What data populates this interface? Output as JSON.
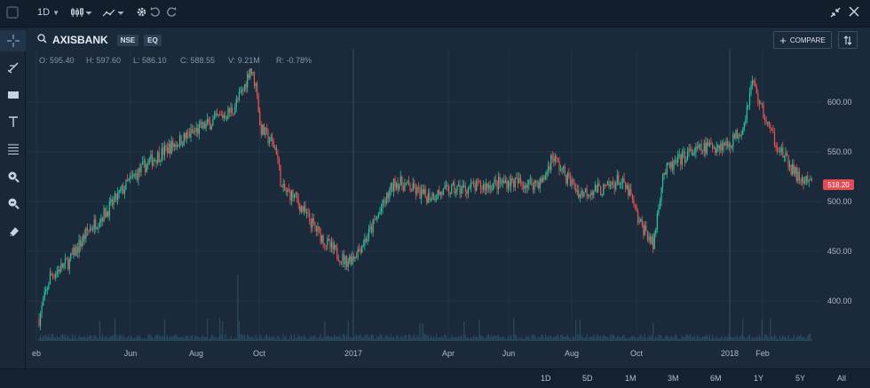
{
  "toolbar": {
    "interval": "1D",
    "icons": [
      "candlestick-icon",
      "indicators-icon",
      "settings-icon",
      "undo-icon",
      "redo-icon",
      "fullscreen-icon",
      "close-icon"
    ]
  },
  "sidebar": {
    "tools": [
      "crosshair-icon",
      "draw-line-icon",
      "rectangle-icon",
      "text-icon",
      "fib-lines-icon",
      "zoom-in-icon",
      "zoom-out-icon",
      "eraser-icon"
    ]
  },
  "header": {
    "symbol": "AXISBANK",
    "exchange": "NSE",
    "segment": "EQ",
    "compare_label": "COMPARE"
  },
  "ohlc": {
    "o_label": "O:",
    "o": "595.40",
    "h_label": "H:",
    "h": "597.60",
    "l_label": "L:",
    "l": "586.10",
    "c_label": "C:",
    "c": "588.55",
    "v_label": "V:",
    "v": "9.21M",
    "r_label": "R:",
    "r": "-0.78%"
  },
  "colors": {
    "up": "#26c6a0",
    "down": "#ef5350",
    "background": "#1b2a3b",
    "last_price": "#e14d52"
  },
  "last_price": "518.20",
  "ranges": [
    "1D",
    "5D",
    "1M",
    "3M",
    "6M",
    "1Y",
    "5Y",
    "All"
  ],
  "chart_data": {
    "type": "candlestick",
    "title": "AXISBANK",
    "ylim": [
      370,
      645
    ],
    "yticks": [
      400,
      450,
      500,
      550,
      600
    ],
    "ytick_labels": [
      "400.00",
      "450.00",
      "500.00",
      "550.00",
      "600.00"
    ],
    "xtick_labels": [
      "eb",
      "Jun",
      "Aug",
      "Oct",
      "2017",
      "Apr",
      "Jun",
      "Aug",
      "Oct",
      "2018",
      "Feb"
    ],
    "trend": [
      [
        0,
        382
      ],
      [
        8,
        425
      ],
      [
        22,
        440
      ],
      [
        35,
        470
      ],
      [
        50,
        492
      ],
      [
        65,
        520
      ],
      [
        80,
        540
      ],
      [
        95,
        555
      ],
      [
        110,
        568
      ],
      [
        125,
        580
      ],
      [
        140,
        592
      ],
      [
        148,
        612
      ],
      [
        153,
        635
      ],
      [
        158,
        612
      ],
      [
        160,
        575
      ],
      [
        168,
        560
      ],
      [
        172,
        552
      ],
      [
        176,
        512
      ],
      [
        185,
        505
      ],
      [
        194,
        485
      ],
      [
        210,
        455
      ],
      [
        222,
        440
      ],
      [
        228,
        445
      ],
      [
        238,
        465
      ],
      [
        250,
        498
      ],
      [
        258,
        520
      ],
      [
        266,
        516
      ],
      [
        280,
        505
      ],
      [
        300,
        512
      ],
      [
        320,
        515
      ],
      [
        340,
        520
      ],
      [
        355,
        518
      ],
      [
        365,
        520
      ],
      [
        372,
        546
      ],
      [
        382,
        525
      ],
      [
        392,
        508
      ],
      [
        400,
        512
      ],
      [
        410,
        512
      ],
      [
        420,
        522
      ],
      [
        428,
        508
      ],
      [
        435,
        478
      ],
      [
        440,
        470
      ],
      [
        445,
        455
      ],
      [
        452,
        528
      ],
      [
        470,
        548
      ],
      [
        485,
        555
      ],
      [
        500,
        558
      ],
      [
        510,
        575
      ],
      [
        517,
        622
      ],
      [
        522,
        600
      ],
      [
        530,
        570
      ],
      [
        542,
        540
      ],
      [
        550,
        524
      ],
      [
        555,
        520
      ],
      [
        560,
        518
      ]
    ]
  }
}
